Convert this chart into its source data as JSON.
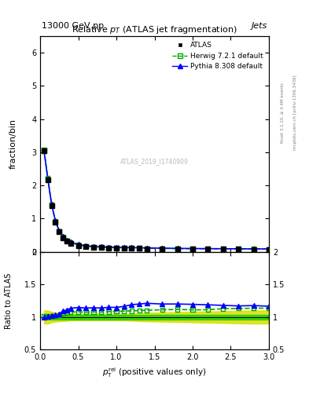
{
  "title": "Relative $p_T$ (ATLAS jet fragmentation)",
  "top_left_label": "13000 GeV pp",
  "top_right_label": "Jets",
  "right_label_top": "Rivet 3.1.10, ≥ 3.4M events",
  "right_label_bottom": "mcplots.cern.ch [arXiv:1306.3436]",
  "watermark": "ATLAS_2019_I1740909",
  "ylabel_main": "fraction/bin",
  "ylabel_ratio": "Ratio to ATLAS",
  "xlabel_text": " (positive values only)",
  "xlim": [
    0,
    3
  ],
  "ylim_main": [
    0,
    6.5
  ],
  "ylim_ratio": [
    0.5,
    2.0
  ],
  "x_data": [
    0.05,
    0.1,
    0.15,
    0.2,
    0.25,
    0.3,
    0.35,
    0.4,
    0.5,
    0.6,
    0.7,
    0.8,
    0.9,
    1.0,
    1.1,
    1.2,
    1.3,
    1.4,
    1.6,
    1.8,
    2.0,
    2.2,
    2.4,
    2.6,
    2.8,
    3.0
  ],
  "atlas_y": [
    3.05,
    2.18,
    1.4,
    0.9,
    0.6,
    0.42,
    0.32,
    0.26,
    0.19,
    0.16,
    0.14,
    0.13,
    0.12,
    0.115,
    0.11,
    0.105,
    0.1,
    0.095,
    0.09,
    0.085,
    0.082,
    0.08,
    0.078,
    0.076,
    0.074,
    0.072
  ],
  "herwig_y": [
    3.08,
    2.22,
    1.43,
    0.92,
    0.62,
    0.44,
    0.34,
    0.28,
    0.205,
    0.172,
    0.151,
    0.14,
    0.13,
    0.125,
    0.12,
    0.115,
    0.11,
    0.105,
    0.1,
    0.095,
    0.091,
    0.089,
    0.088,
    0.086,
    0.084,
    0.082
  ],
  "pythia_y": [
    3.05,
    2.2,
    1.43,
    0.93,
    0.63,
    0.46,
    0.355,
    0.295,
    0.218,
    0.182,
    0.16,
    0.148,
    0.138,
    0.132,
    0.128,
    0.125,
    0.12,
    0.115,
    0.108,
    0.102,
    0.098,
    0.095,
    0.092,
    0.089,
    0.087,
    0.084
  ],
  "herwig_ratio": [
    1.01,
    1.02,
    1.02,
    1.02,
    1.03,
    1.048,
    1.063,
    1.077,
    1.08,
    1.075,
    1.079,
    1.077,
    1.083,
    1.087,
    1.091,
    1.095,
    1.1,
    1.105,
    1.111,
    1.118,
    1.11,
    1.113,
    1.128,
    1.132,
    1.135,
    1.139
  ],
  "pythia_ratio": [
    1.0,
    1.01,
    1.02,
    1.033,
    1.05,
    1.095,
    1.109,
    1.135,
    1.147,
    1.138,
    1.143,
    1.138,
    1.15,
    1.148,
    1.164,
    1.19,
    1.2,
    1.211,
    1.2,
    1.2,
    1.195,
    1.188,
    1.179,
    1.171,
    1.176,
    1.167
  ],
  "green_band_upper": [
    1.04,
    1.04,
    1.04,
    1.04,
    1.04,
    1.04,
    1.04,
    1.04,
    1.04,
    1.04,
    1.04,
    1.04,
    1.04,
    1.04,
    1.04,
    1.04,
    1.04,
    1.04,
    1.04,
    1.04,
    1.04,
    1.04,
    1.04,
    1.04,
    1.04,
    1.04
  ],
  "green_band_lower": [
    0.96,
    0.96,
    0.96,
    0.96,
    0.96,
    0.96,
    0.96,
    0.96,
    0.96,
    0.96,
    0.96,
    0.96,
    0.96,
    0.96,
    0.96,
    0.96,
    0.96,
    0.96,
    0.96,
    0.96,
    0.96,
    0.96,
    0.96,
    0.96,
    0.96,
    0.96
  ],
  "yellow_band_upper": [
    1.1,
    1.1,
    1.08,
    1.07,
    1.065,
    1.06,
    1.055,
    1.05,
    1.05,
    1.05,
    1.05,
    1.05,
    1.05,
    1.05,
    1.05,
    1.055,
    1.06,
    1.065,
    1.07,
    1.075,
    1.08,
    1.085,
    1.09,
    1.095,
    1.1,
    1.1
  ],
  "yellow_band_lower": [
    0.9,
    0.9,
    0.92,
    0.93,
    0.935,
    0.94,
    0.945,
    0.95,
    0.95,
    0.95,
    0.95,
    0.95,
    0.95,
    0.95,
    0.95,
    0.945,
    0.94,
    0.935,
    0.93,
    0.925,
    0.92,
    0.915,
    0.91,
    0.905,
    0.9,
    0.9
  ],
  "atlas_color": "#000000",
  "herwig_color": "#00aa00",
  "pythia_color": "#0000ff",
  "green_band_color": "#00cc00",
  "yellow_band_color": "#dddd00"
}
